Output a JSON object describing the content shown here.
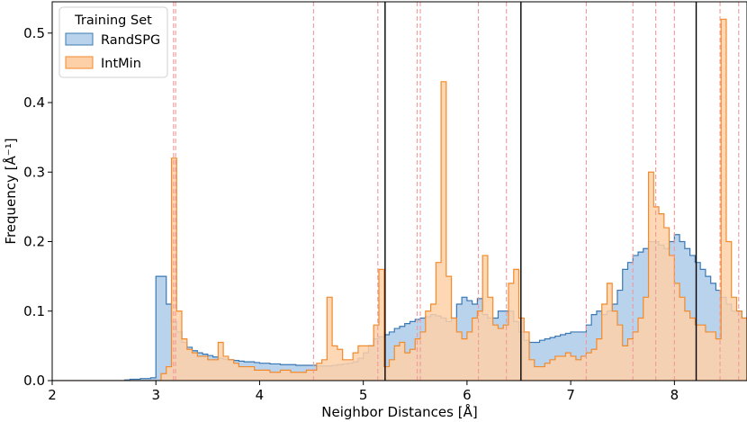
{
  "chart_data": {
    "type": "histogram",
    "xlabel": "Neighbor Distances [Å]",
    "ylabel": "Frequency [Å⁻¹]",
    "xlim": [
      2.0,
      8.7
    ],
    "ylim": [
      0.0,
      0.545
    ],
    "xticks": [
      "2",
      "3",
      "4",
      "5",
      "6",
      "7",
      "8"
    ],
    "yticks": [
      "0.0",
      "0.1",
      "0.2",
      "0.3",
      "0.4",
      "0.5"
    ],
    "legend": {
      "title": "Training Set",
      "placement": "top-left",
      "entries": [
        "RandSPG",
        "IntMin"
      ]
    },
    "colors": {
      "randspg_fill": "#b9d3ec",
      "randspg_edge": "#3a78b4",
      "intmin_fill": "#fed0a8",
      "intmin_edge": "#f28a2c",
      "ref_line": "#f19a9a",
      "cutoff_line": "#000000"
    },
    "bin_start": 2.0,
    "bin_width": 0.05,
    "series": [
      {
        "name": "RandSPG",
        "values": [
          0,
          0,
          0,
          0,
          0,
          0,
          0,
          0,
          0,
          0,
          0,
          0,
          0,
          0,
          0.001,
          0.002,
          0.002,
          0.003,
          0.003,
          0.004,
          0.15,
          0.15,
          0.11,
          0.085,
          0.07,
          0.055,
          0.048,
          0.043,
          0.04,
          0.038,
          0.036,
          0.034,
          0.032,
          0.031,
          0.03,
          0.029,
          0.028,
          0.027,
          0.027,
          0.026,
          0.025,
          0.025,
          0.024,
          0.024,
          0.023,
          0.023,
          0.023,
          0.022,
          0.022,
          0.022,
          0.022,
          0.021,
          0.021,
          0.021,
          0.022,
          0.023,
          0.024,
          0.025,
          0.027,
          0.032,
          0.04,
          0.05,
          0.06,
          0.063,
          0.066,
          0.07,
          0.075,
          0.078,
          0.082,
          0.085,
          0.088,
          0.09,
          0.092,
          0.095,
          0.093,
          0.09,
          0.085,
          0.09,
          0.11,
          0.12,
          0.115,
          0.11,
          0.118,
          0.095,
          0.09,
          0.09,
          0.1,
          0.1,
          0.1,
          0.085,
          0.07,
          0.058,
          0.055,
          0.055,
          0.058,
          0.06,
          0.062,
          0.064,
          0.066,
          0.068,
          0.07,
          0.07,
          0.07,
          0.08,
          0.095,
          0.1,
          0.095,
          0.1,
          0.11,
          0.13,
          0.16,
          0.17,
          0.18,
          0.185,
          0.19,
          0.2,
          0.2,
          0.195,
          0.19,
          0.2,
          0.21,
          0.2,
          0.19,
          0.18,
          0.17,
          0.16,
          0.15,
          0.14,
          0.13,
          0.12,
          0.11,
          0.1,
          0.1,
          0.09
        ]
      },
      {
        "name": "IntMin",
        "values": [
          0,
          0,
          0,
          0,
          0,
          0,
          0,
          0,
          0,
          0,
          0,
          0,
          0,
          0,
          0,
          0,
          0,
          0,
          0,
          0,
          0,
          0.01,
          0.02,
          0.32,
          0.1,
          0.06,
          0.045,
          0.04,
          0.035,
          0.035,
          0.03,
          0.03,
          0.055,
          0.035,
          0.03,
          0.025,
          0.02,
          0.02,
          0.02,
          0.015,
          0.015,
          0.015,
          0.012,
          0.012,
          0.015,
          0.015,
          0.012,
          0.012,
          0.012,
          0.015,
          0.015,
          0.025,
          0.03,
          0.12,
          0.05,
          0.045,
          0.03,
          0.03,
          0.04,
          0.05,
          0.05,
          0.05,
          0.08,
          0.16,
          0.02,
          0.03,
          0.05,
          0.055,
          0.04,
          0.045,
          0.06,
          0.07,
          0.1,
          0.11,
          0.17,
          0.43,
          0.15,
          0.09,
          0.07,
          0.06,
          0.07,
          0.09,
          0.1,
          0.18,
          0.12,
          0.08,
          0.075,
          0.08,
          0.14,
          0.16,
          0.09,
          0.07,
          0.03,
          0.02,
          0.02,
          0.025,
          0.03,
          0.035,
          0.035,
          0.04,
          0.035,
          0.03,
          0.035,
          0.04,
          0.045,
          0.06,
          0.11,
          0.14,
          0.1,
          0.08,
          0.05,
          0.06,
          0.07,
          0.09,
          0.12,
          0.3,
          0.25,
          0.24,
          0.22,
          0.18,
          0.14,
          0.12,
          0.1,
          0.09,
          0.08,
          0.08,
          0.07,
          0.07,
          0.06,
          0.52,
          0.2,
          0.12,
          0.1,
          0.09
        ]
      }
    ],
    "ref_lines_x": [
      3.17,
      3.19,
      4.52,
      5.14,
      5.52,
      5.55,
      6.11,
      6.38,
      7.15,
      7.6,
      7.82,
      8.0,
      8.44,
      8.62
    ],
    "cutoff_lines_x": [
      5.21,
      6.52,
      8.21
    ]
  }
}
